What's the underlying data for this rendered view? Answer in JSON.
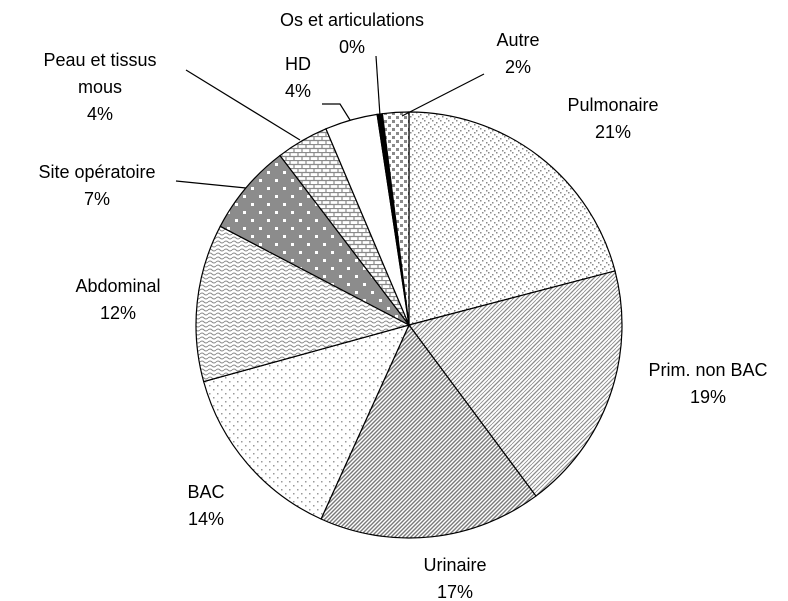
{
  "chart_data": {
    "type": "pie",
    "categories": [
      "Pulmonaire",
      "Prim. non BAC",
      "Urinaire",
      "BAC",
      "Abdominal",
      "Site opératoire",
      "Peau et tissus mous",
      "HD",
      "Os et articulations",
      "Autre"
    ],
    "values": [
      21,
      19,
      17,
      14,
      12,
      7,
      4,
      4,
      0.4,
      2
    ],
    "value_labels": [
      "21%",
      "19%",
      "17%",
      "14%",
      "12%",
      "7%",
      "4%",
      "4%",
      "0%",
      "2%"
    ],
    "colors": [
      "#8a8a8a",
      "#8a8a8a",
      "#7a7a7a",
      "#9a9a9a",
      "#8a8a8a",
      "#8c8c8c",
      "#8a8a8a",
      "#ffffff",
      "#000000",
      "#8a8a8a"
    ]
  }
}
